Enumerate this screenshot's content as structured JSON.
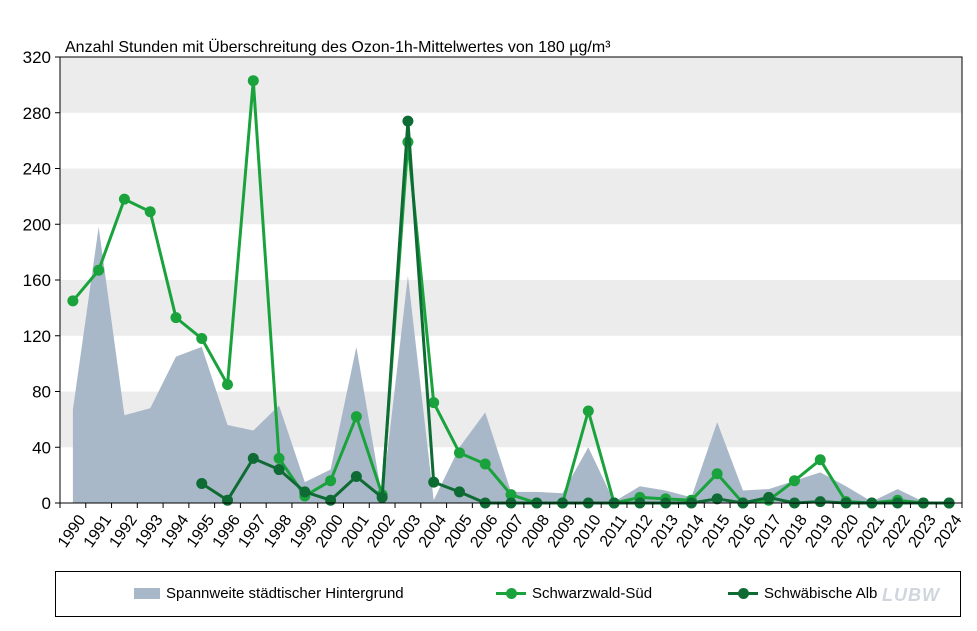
{
  "chart_data": {
    "type": "line",
    "title": "Anzahl Stunden mit Überschreitung des Ozon-1h-Mittelwertes von 180 µg/m³",
    "xlabel": "",
    "ylabel": "",
    "ylim": [
      0,
      320
    ],
    "yticks": [
      0,
      40,
      80,
      120,
      160,
      200,
      240,
      280,
      320
    ],
    "grid": "alternating horizontal bands",
    "categories": [
      "1990",
      "1991",
      "1992",
      "1993",
      "1994",
      "1995",
      "1996",
      "1997",
      "1998",
      "1999",
      "2000",
      "2001",
      "2002",
      "2003",
      "2004",
      "2005",
      "2006",
      "2007",
      "2008",
      "2009",
      "2010",
      "2011",
      "2012",
      "2013",
      "2014",
      "2015",
      "2016",
      "2017",
      "2018",
      "2019",
      "2020",
      "2021",
      "2022",
      "2023",
      "2024"
    ],
    "series": [
      {
        "name": "Spannweite städtischer Hintergrund",
        "kind": "area",
        "color": "#a9b8c8",
        "values": [
          67,
          198,
          63,
          68,
          105,
          112,
          56,
          52,
          70,
          15,
          24,
          112,
          4,
          163,
          2,
          40,
          65,
          8,
          8,
          7,
          40,
          1,
          12,
          9,
          4,
          58,
          9,
          10,
          16,
          22,
          12,
          1,
          10,
          1,
          0
        ]
      },
      {
        "name": "Schwarzwald-Süd",
        "kind": "line",
        "color": "#1aa33c",
        "values": [
          145,
          167,
          218,
          209,
          133,
          118,
          85,
          303,
          32,
          5,
          16,
          62,
          6,
          259,
          72,
          36,
          28,
          6,
          0,
          0,
          66,
          0,
          4,
          3,
          2,
          21,
          0,
          2,
          16,
          31,
          1,
          0,
          2,
          0,
          0
        ]
      },
      {
        "name": "Schwäbische Alb",
        "kind": "line",
        "color": "#0f6b34",
        "values": [
          null,
          null,
          null,
          null,
          null,
          14,
          2,
          32,
          24,
          8,
          2,
          19,
          4,
          274,
          15,
          8,
          0,
          0,
          0,
          0,
          0,
          0,
          0,
          0,
          0,
          3,
          0,
          4,
          0,
          1,
          0,
          0,
          0,
          0,
          0
        ]
      }
    ],
    "legend_position": "bottom"
  },
  "legend": {
    "area_label": "Spannweite städtischer Hintergrund",
    "line1_label": "Schwarzwald-Süd",
    "line2_label": "Schwäbische Alb"
  },
  "logo": "LUBW"
}
